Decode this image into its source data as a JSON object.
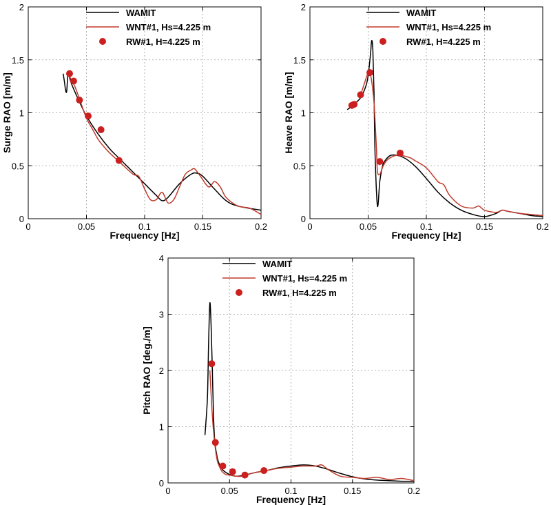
{
  "chart_data": [
    {
      "type": "line",
      "xlabel": "Frequency [Hz]",
      "ylabel": "Surge RAO [m/m]",
      "xlim": [
        0,
        0.2
      ],
      "ylim": [
        0,
        2
      ],
      "xticks": [
        0,
        0.05,
        0.1,
        0.15,
        0.2
      ],
      "xtick_labels": [
        "0",
        "0.05",
        "0.1",
        "0.15",
        "0.2"
      ],
      "yticks": [
        0,
        0.5,
        1,
        1.5,
        2
      ],
      "ytick_labels": [
        "0",
        "0.5",
        "1",
        "1.5",
        "2"
      ],
      "grid": true,
      "legend_position": "top-right",
      "series": [
        {
          "name": "WAMIT",
          "kind": "line",
          "color": "#000000",
          "x": [
            0.03,
            0.031,
            0.032,
            0.033,
            0.034,
            0.035,
            0.037,
            0.04,
            0.045,
            0.05,
            0.06,
            0.07,
            0.08,
            0.09,
            0.1,
            0.11,
            0.115,
            0.12,
            0.13,
            0.14,
            0.145,
            0.15,
            0.16,
            0.17,
            0.18,
            0.2
          ],
          "y": [
            1.37,
            1.3,
            1.22,
            1.2,
            1.35,
            1.35,
            1.28,
            1.2,
            1.08,
            0.97,
            0.8,
            0.66,
            0.55,
            0.44,
            0.33,
            0.22,
            0.17,
            0.2,
            0.33,
            0.42,
            0.43,
            0.4,
            0.28,
            0.17,
            0.12,
            0.08
          ]
        },
        {
          "name": "WNT#1, Hs=4.225 m",
          "kind": "line",
          "color": "#c0392b",
          "x": [
            0.035,
            0.04,
            0.045,
            0.05,
            0.055,
            0.06,
            0.065,
            0.07,
            0.08,
            0.09,
            0.095,
            0.1,
            0.105,
            0.11,
            0.115,
            0.12,
            0.125,
            0.13,
            0.135,
            0.14,
            0.143,
            0.148,
            0.155,
            0.16,
            0.165,
            0.17,
            0.18,
            0.19,
            0.2
          ],
          "y": [
            1.35,
            1.25,
            1.1,
            0.95,
            0.85,
            0.75,
            0.68,
            0.62,
            0.52,
            0.42,
            0.4,
            0.28,
            0.18,
            0.18,
            0.25,
            0.15,
            0.18,
            0.3,
            0.42,
            0.46,
            0.47,
            0.4,
            0.3,
            0.35,
            0.3,
            0.2,
            0.12,
            0.1,
            0.04
          ]
        },
        {
          "name": "RW#1, H=4.225 m",
          "kind": "scatter",
          "color": "#cc1f1f",
          "x": [
            0.0355,
            0.039,
            0.044,
            0.0515,
            0.0625,
            0.078
          ],
          "y": [
            1.37,
            1.3,
            1.12,
            0.97,
            0.84,
            0.55
          ]
        }
      ]
    },
    {
      "type": "line",
      "xlabel": "Frequency [Hz]",
      "ylabel": "Heave RAO [m/m]",
      "xlim": [
        0,
        0.2
      ],
      "ylim": [
        0,
        2
      ],
      "xticks": [
        0,
        0.05,
        0.1,
        0.15,
        0.2
      ],
      "xtick_labels": [
        "0",
        "0.05",
        "0.1",
        "0.15",
        "0.2"
      ],
      "yticks": [
        0,
        0.5,
        1,
        1.5,
        2
      ],
      "ytick_labels": [
        "0",
        "0.5",
        "1",
        "1.5",
        "2"
      ],
      "grid": true,
      "legend_position": "top-right",
      "series": [
        {
          "name": "WAMIT",
          "kind": "line",
          "color": "#000000",
          "x": [
            0.032,
            0.036,
            0.04,
            0.044,
            0.048,
            0.05,
            0.052,
            0.053,
            0.054,
            0.055,
            0.056,
            0.058,
            0.06,
            0.062,
            0.064,
            0.07,
            0.08,
            0.09,
            0.1,
            0.11,
            0.12,
            0.13,
            0.14,
            0.15,
            0.16,
            0.165,
            0.17,
            0.18,
            0.19,
            0.2
          ],
          "y": [
            1.03,
            1.06,
            1.1,
            1.15,
            1.25,
            1.35,
            1.55,
            1.68,
            1.6,
            1.2,
            0.6,
            0.12,
            0.35,
            0.48,
            0.54,
            0.6,
            0.58,
            0.5,
            0.38,
            0.25,
            0.15,
            0.08,
            0.04,
            0.02,
            0.05,
            0.08,
            0.07,
            0.05,
            0.03,
            0.02
          ]
        },
        {
          "name": "WNT#1, Hs=4.225 m",
          "kind": "line",
          "color": "#c0392b",
          "x": [
            0.043,
            0.046,
            0.049,
            0.051,
            0.053,
            0.055,
            0.057,
            0.058,
            0.06,
            0.063,
            0.067,
            0.075,
            0.085,
            0.09,
            0.1,
            0.11,
            0.115,
            0.12,
            0.13,
            0.14,
            0.145,
            0.15,
            0.16,
            0.165,
            0.17,
            0.18,
            0.19,
            0.2
          ],
          "y": [
            1.15,
            1.25,
            1.35,
            1.4,
            1.3,
            1.1,
            0.7,
            0.45,
            0.42,
            0.5,
            0.56,
            0.6,
            0.58,
            0.55,
            0.48,
            0.35,
            0.32,
            0.22,
            0.12,
            0.1,
            0.12,
            0.08,
            0.06,
            0.08,
            0.07,
            0.05,
            0.04,
            0.03
          ]
        },
        {
          "name": "RW#1, H=4.225 m",
          "kind": "scatter",
          "color": "#cc1f1f",
          "x": [
            0.036,
            0.038,
            0.0435,
            0.0515,
            0.06,
            0.0775
          ],
          "y": [
            1.07,
            1.08,
            1.17,
            1.38,
            0.54,
            0.62
          ]
        }
      ]
    },
    {
      "type": "line",
      "xlabel": "Frequency [Hz]",
      "ylabel": "Pitch RAO [deg./m]",
      "xlim": [
        0,
        0.2
      ],
      "ylim": [
        0,
        4
      ],
      "xticks": [
        0,
        0.05,
        0.1,
        0.15,
        0.2
      ],
      "xtick_labels": [
        "0",
        "0.05",
        "0.1",
        "0.15",
        "0.2"
      ],
      "yticks": [
        0,
        1,
        2,
        3,
        4
      ],
      "ytick_labels": [
        "0",
        "1",
        "2",
        "3",
        "4"
      ],
      "grid": true,
      "legend_position": "top-right",
      "series": [
        {
          "name": "WAMIT",
          "kind": "line",
          "color": "#000000",
          "x": [
            0.03,
            0.032,
            0.033,
            0.034,
            0.035,
            0.036,
            0.037,
            0.038,
            0.04,
            0.042,
            0.045,
            0.05,
            0.055,
            0.06,
            0.07,
            0.08,
            0.09,
            0.1,
            0.11,
            0.12,
            0.13,
            0.14,
            0.15,
            0.16,
            0.17,
            0.18,
            0.19,
            0.2
          ],
          "y": [
            0.85,
            1.5,
            2.5,
            3.2,
            2.8,
            2.0,
            1.2,
            0.75,
            0.45,
            0.32,
            0.22,
            0.15,
            0.12,
            0.13,
            0.18,
            0.22,
            0.27,
            0.3,
            0.32,
            0.3,
            0.24,
            0.17,
            0.11,
            0.07,
            0.05,
            0.04,
            0.03,
            0.03
          ]
        },
        {
          "name": "WNT#1, Hs=4.225 m",
          "kind": "line",
          "color": "#c0392b",
          "x": [
            0.034,
            0.036,
            0.038,
            0.04,
            0.042,
            0.044,
            0.047,
            0.05,
            0.055,
            0.06,
            0.07,
            0.08,
            0.09,
            0.1,
            0.11,
            0.12,
            0.125,
            0.13,
            0.14,
            0.15,
            0.16,
            0.17,
            0.18,
            0.19,
            0.2
          ],
          "y": [
            2.0,
            1.2,
            0.7,
            0.4,
            0.28,
            0.2,
            0.15,
            0.14,
            0.12,
            0.12,
            0.18,
            0.22,
            0.26,
            0.28,
            0.3,
            0.3,
            0.32,
            0.24,
            0.12,
            0.1,
            0.08,
            0.1,
            0.06,
            0.08,
            0.04
          ]
        },
        {
          "name": "RW#1, H=4.225 m",
          "kind": "scatter",
          "color": "#cc1f1f",
          "x": [
            0.0355,
            0.0385,
            0.0445,
            0.0525,
            0.0625,
            0.078
          ],
          "y": [
            2.12,
            0.72,
            0.3,
            0.2,
            0.14,
            0.22
          ]
        }
      ]
    }
  ]
}
